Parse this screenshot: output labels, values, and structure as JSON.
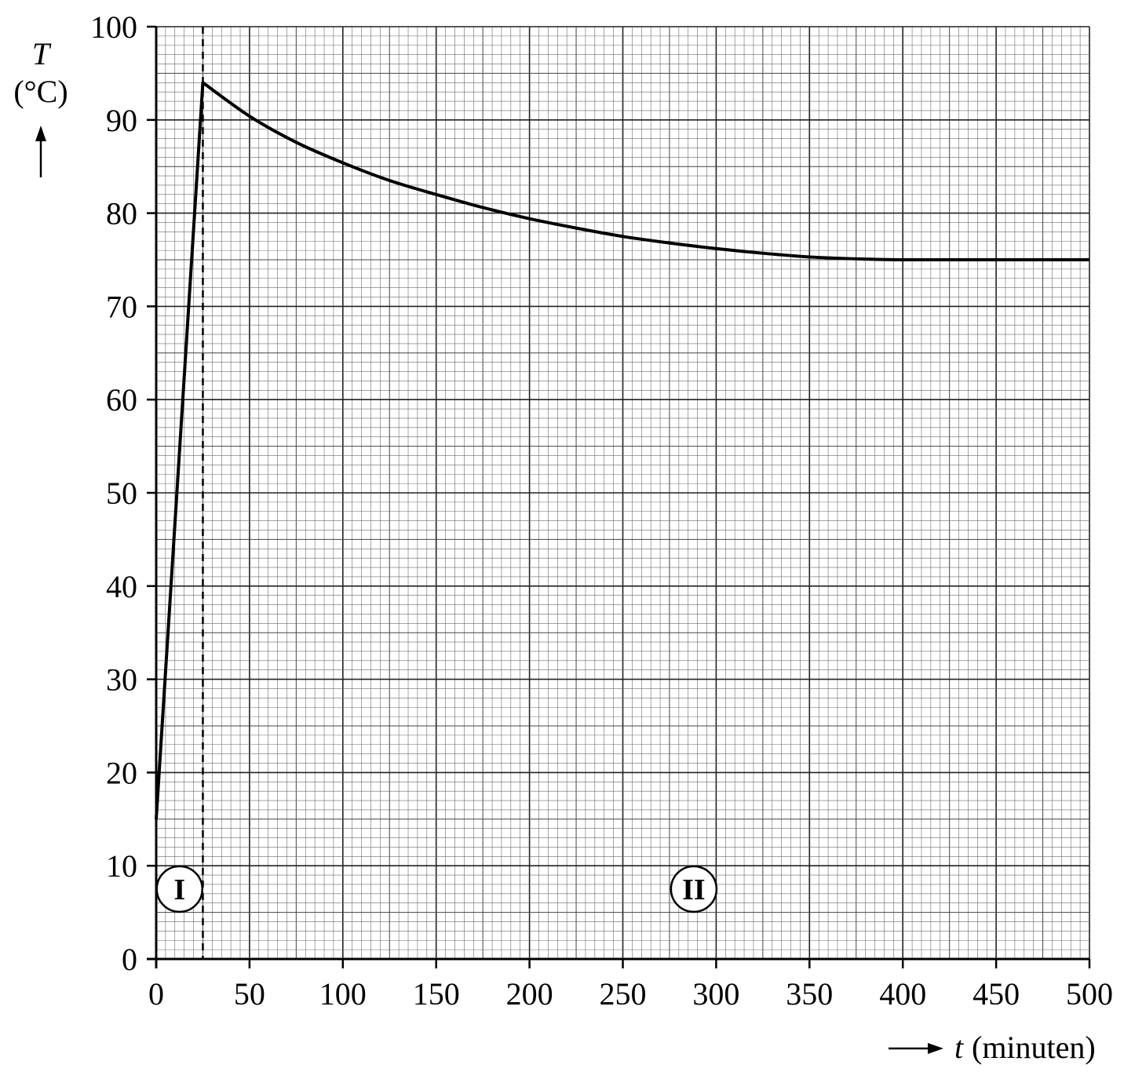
{
  "chart_data": {
    "type": "line",
    "x_axis": {
      "symbol": "t",
      "unit": "(minuten)",
      "range": [
        0,
        500
      ],
      "ticks": [
        "0",
        "50",
        "100",
        "150",
        "200",
        "250",
        "300",
        "350",
        "400",
        "450",
        "500"
      ]
    },
    "y_axis": {
      "symbol": "T",
      "unit": "(°C)",
      "range": [
        0,
        100
      ],
      "ticks": [
        "0",
        "10",
        "20",
        "30",
        "40",
        "50",
        "60",
        "70",
        "80",
        "90",
        "100"
      ]
    },
    "grid": {
      "on": true,
      "style": "graph paper (major every 50 min / 10 °C, minor every 5 min / 1 °C)"
    },
    "series": [
      {
        "x": [
          0,
          25,
          50,
          75,
          100,
          125,
          150,
          175,
          200,
          225,
          250,
          275,
          300,
          325,
          350,
          375,
          400,
          450,
          500
        ],
        "y": [
          15,
          94,
          90.4,
          87.6,
          85.4,
          83.5,
          82.0,
          80.6,
          79.4,
          78.4,
          77.5,
          76.8,
          76.2,
          75.7,
          75.3,
          75.1,
          75.0,
          75.0,
          75.0
        ]
      }
    ],
    "reference_lines": [
      {
        "type": "vertical",
        "x": 25,
        "style": "dashed"
      }
    ],
    "region_labels": [
      {
        "text": "I",
        "x": 12.5,
        "y": 7.5
      },
      {
        "text": "II",
        "x": 288,
        "y": 7.5
      }
    ]
  }
}
